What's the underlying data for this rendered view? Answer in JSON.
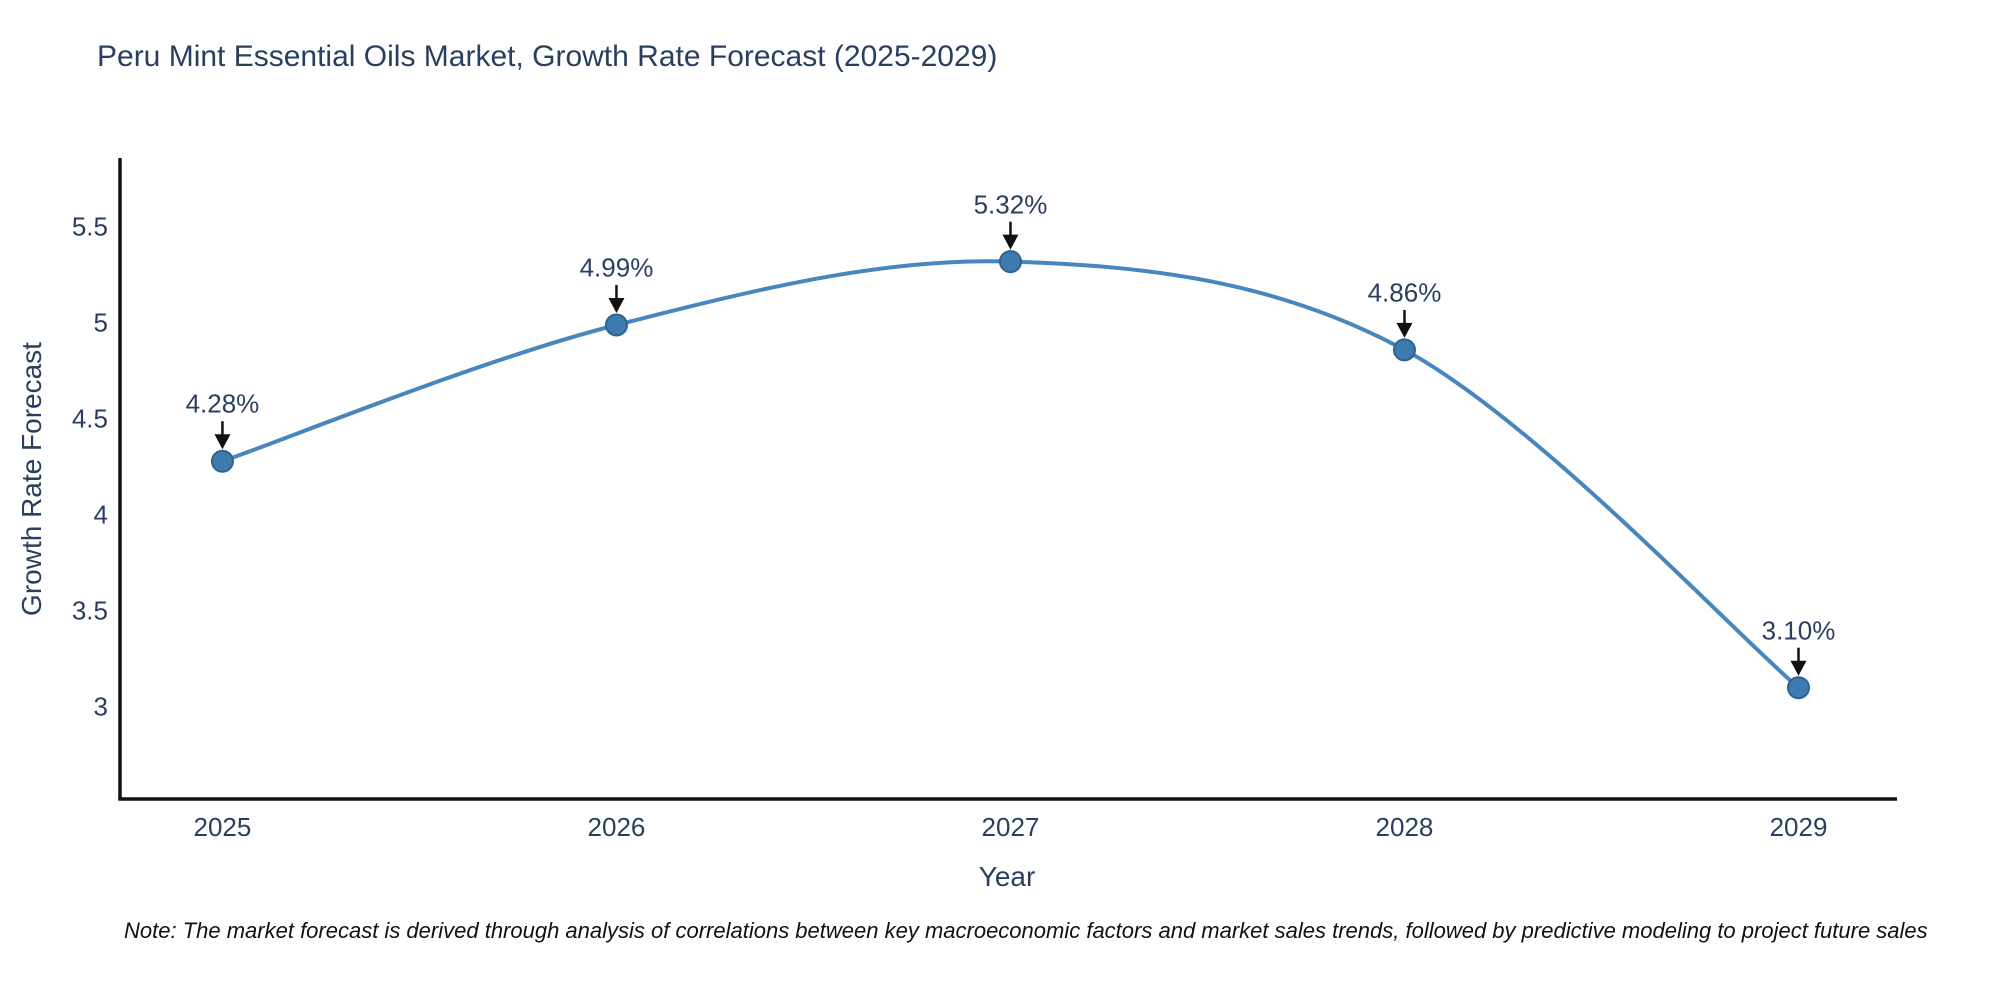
{
  "title": "Peru Mint Essential Oils Market, Growth Rate Forecast (2025-2029)",
  "note": "Note: The market forecast is derived through analysis of correlations between key macroeconomic factors and market sales trends, followed by predictive modeling to project future sales",
  "chart_data": {
    "type": "line",
    "title": "Peru Mint Essential Oils Market, Growth Rate Forecast (2025-2029)",
    "xlabel": "Year",
    "ylabel": "Growth Rate Forecast",
    "x": [
      2025,
      2026,
      2027,
      2028,
      2029
    ],
    "values": [
      4.28,
      4.99,
      5.32,
      4.86,
      3.1
    ],
    "point_labels": [
      "4.28%",
      "4.99%",
      "5.32%",
      "4.86%",
      "3.10%"
    ],
    "x_tick_labels": [
      "2025",
      "2026",
      "2027",
      "2028",
      "2029"
    ],
    "x_tick_values": [
      2025,
      2026,
      2027,
      2028,
      2029
    ],
    "y_tick_labels": [
      "3",
      "3.5",
      "4",
      "4.5",
      "5",
      "5.5"
    ],
    "y_tick_values": [
      3,
      3.5,
      4,
      4.5,
      5,
      5.5
    ],
    "xlim": [
      2024.74,
      2029.25
    ],
    "ylim": [
      2.52,
      5.86
    ],
    "grid": false,
    "legend": false,
    "line_shape": "spline",
    "colors": {
      "line": "#4886bd",
      "marker_fill": "#3e7bb1",
      "marker_edge": "#2d648f",
      "axis_line": "#111111",
      "text": "#2a3f5f",
      "arrow": "#111111"
    }
  }
}
